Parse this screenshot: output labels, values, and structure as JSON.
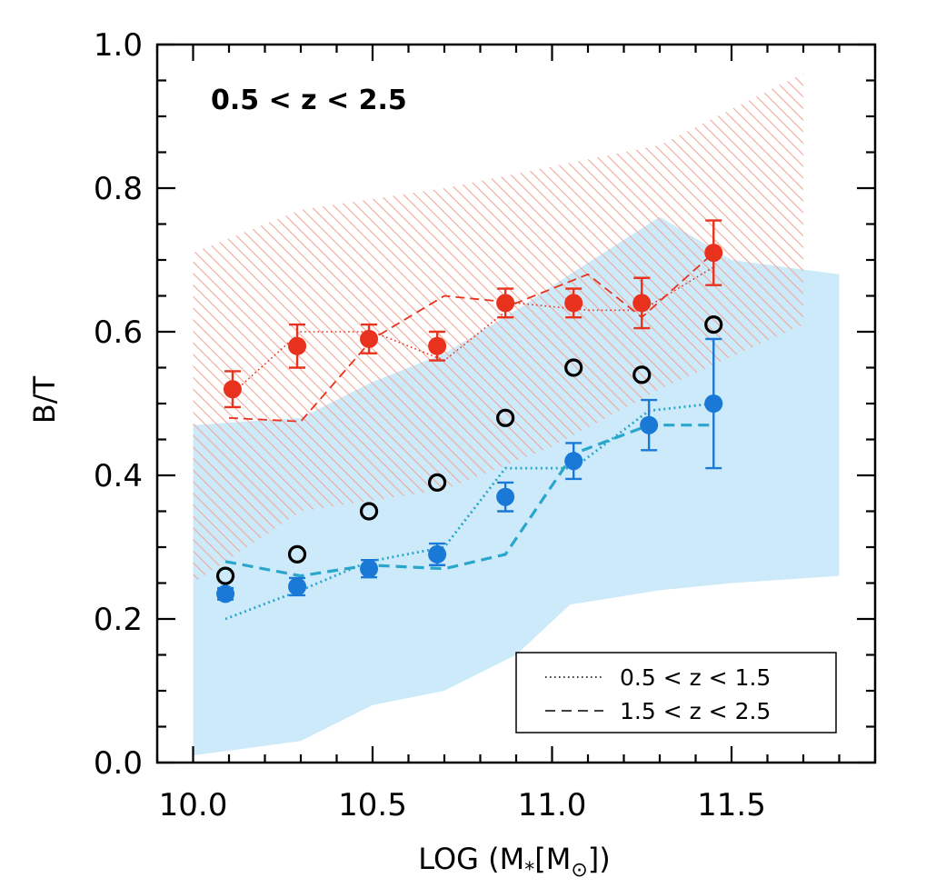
{
  "chart_data": {
    "type": "scatter",
    "annotation": "0.5 < z < 2.5",
    "xlabel_parts": {
      "prefix": "LOG (M",
      "sub": "*",
      "mid": "[M",
      "sun": "⊙",
      "suffix": "])"
    },
    "ylabel": "B/T",
    "xlim": [
      9.9,
      11.9
    ],
    "ylim": [
      0.0,
      1.0
    ],
    "x_ticks": [
      10.0,
      10.5,
      11.0,
      11.5
    ],
    "x_tick_labels": [
      "10.0",
      "10.5",
      "11.0",
      "11.5"
    ],
    "y_ticks": [
      0.0,
      0.2,
      0.4,
      0.6,
      0.8,
      1.0
    ],
    "y_tick_labels": [
      "0.0",
      "0.2",
      "0.4",
      "0.6",
      "0.8",
      "1.0"
    ],
    "colors": {
      "red": "#e8321e",
      "blue": "#1a78d6",
      "lightblue": "#cceaf9",
      "hatch": "#f0a898",
      "black": "#000000"
    },
    "red_band": {
      "x": [
        10.0,
        10.3,
        10.7,
        11.0,
        11.3,
        11.7
      ],
      "lower": [
        0.25,
        0.35,
        0.38,
        0.44,
        0.52,
        0.61
      ],
      "upper": [
        0.71,
        0.77,
        0.8,
        0.83,
        0.86,
        0.96
      ]
    },
    "blue_band": {
      "x": [
        10.0,
        10.3,
        10.5,
        10.7,
        10.9,
        11.05,
        11.3,
        11.5,
        11.8
      ],
      "lower": [
        0.01,
        0.03,
        0.08,
        0.1,
        0.15,
        0.22,
        0.24,
        0.25,
        0.26
      ],
      "upper": [
        0.47,
        0.48,
        0.53,
        0.57,
        0.63,
        0.68,
        0.76,
        0.7,
        0.68
      ]
    },
    "red_points": {
      "x": [
        10.11,
        10.29,
        10.49,
        10.68,
        10.87,
        11.06,
        11.25,
        11.45
      ],
      "y": [
        0.52,
        0.58,
        0.59,
        0.58,
        0.64,
        0.64,
        0.64,
        0.71
      ],
      "err": [
        0.025,
        0.03,
        0.02,
        0.02,
        0.02,
        0.02,
        0.035,
        0.045
      ]
    },
    "blue_points": {
      "x": [
        10.09,
        10.29,
        10.49,
        10.68,
        10.87,
        11.06,
        11.27,
        11.45
      ],
      "y": [
        0.235,
        0.245,
        0.27,
        0.29,
        0.37,
        0.42,
        0.47,
        0.5
      ],
      "err": [
        0.008,
        0.012,
        0.012,
        0.015,
        0.02,
        0.025,
        0.035,
        0.09
      ]
    },
    "open_points": {
      "x": [
        10.09,
        10.29,
        10.49,
        10.68,
        10.87,
        11.06,
        11.25,
        11.45
      ],
      "y": [
        0.26,
        0.29,
        0.35,
        0.39,
        0.48,
        0.55,
        0.54,
        0.61
      ]
    },
    "red_dotted": {
      "x": [
        10.1,
        10.3,
        10.5,
        10.7,
        10.9,
        11.1,
        11.25,
        11.45
      ],
      "y": [
        0.51,
        0.6,
        0.6,
        0.56,
        0.64,
        0.63,
        0.63,
        0.69
      ]
    },
    "red_dashed": {
      "x": [
        10.1,
        10.3,
        10.5,
        10.7,
        10.9,
        11.1,
        11.25,
        11.45
      ],
      "y": [
        0.48,
        0.475,
        0.59,
        0.65,
        0.64,
        0.68,
        0.62,
        0.71
      ]
    },
    "blue_dotted": {
      "x": [
        10.09,
        10.3,
        10.49,
        10.7,
        10.87,
        11.06,
        11.27,
        11.45
      ],
      "y": [
        0.2,
        0.24,
        0.28,
        0.3,
        0.41,
        0.41,
        0.49,
        0.5
      ]
    },
    "blue_dashed": {
      "x": [
        10.09,
        10.3,
        10.49,
        10.7,
        10.87,
        11.06,
        11.27,
        11.45
      ],
      "y": [
        0.28,
        0.26,
        0.275,
        0.27,
        0.29,
        0.43,
        0.47,
        0.47
      ]
    },
    "legend": {
      "position": "bottom-right",
      "entries": [
        {
          "style": "dotted",
          "label": "0.5 < z < 1.5"
        },
        {
          "style": "dashed",
          "label": "1.5 < z < 2.5"
        }
      ]
    }
  }
}
